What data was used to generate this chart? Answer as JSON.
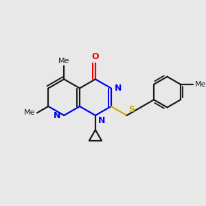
{
  "bg_color": "#e8e8e8",
  "bond_color": "#1a1a1a",
  "n_color": "#0000ee",
  "o_color": "#ee0000",
  "s_color": "#ccaa00",
  "lw": 1.6,
  "figsize": [
    3.0,
    3.0
  ],
  "dpi": 100,
  "BL": 0.092,
  "xlim": [
    0.0,
    1.0
  ],
  "ylim": [
    0.0,
    1.0
  ]
}
